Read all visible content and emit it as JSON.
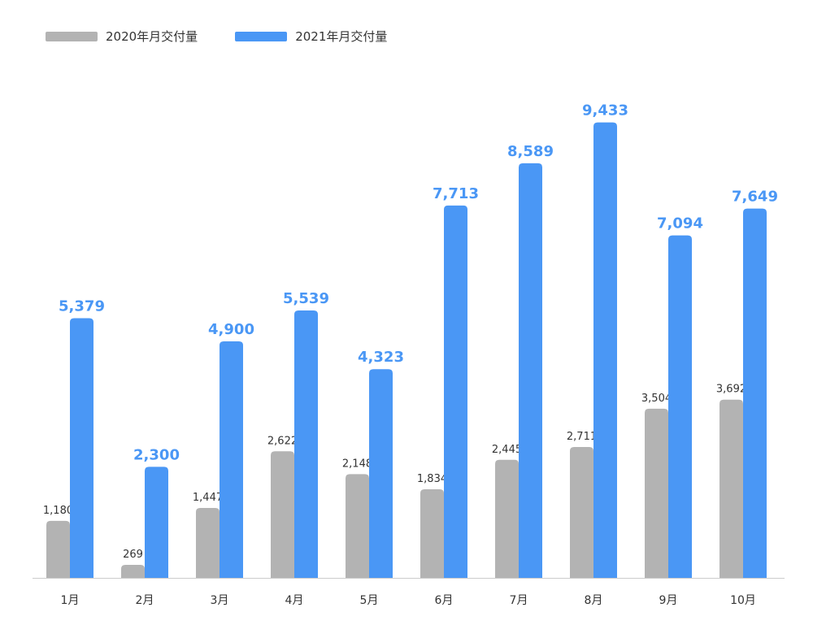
{
  "colors": {
    "series_2020": "#b3b3b3",
    "series_2021": "#4a97f5",
    "axis": "#cccccc",
    "label_2020": "#333333",
    "label_2021": "#4a97f5",
    "tick": "#333333"
  },
  "legend": [
    {
      "name": "2020年月交付量"
    },
    {
      "name": "2021年月交付量"
    }
  ],
  "chart_data": {
    "type": "bar",
    "categories": [
      "1月",
      "2月",
      "3月",
      "4月",
      "5月",
      "6月",
      "7月",
      "8月",
      "9月",
      "10月"
    ],
    "series": [
      {
        "name": "2020年月交付量",
        "values": [
          1180,
          269,
          1447,
          2622,
          2148,
          1834,
          2445,
          2711,
          3504,
          3692
        ],
        "labels": [
          "1,180",
          "269",
          "1,447",
          "2,622",
          "2,148",
          "1,834",
          "2,445",
          "2,711",
          "3,504",
          "3,692"
        ]
      },
      {
        "name": "2021年月交付量",
        "values": [
          5379,
          2300,
          4900,
          5539,
          4323,
          7713,
          8589,
          9433,
          7094,
          7649
        ],
        "labels": [
          "5,379",
          "2,300",
          "4,900",
          "5,539",
          "4,323",
          "7,713",
          "8,589",
          "9,433",
          "7,094",
          "7,649"
        ]
      }
    ],
    "ylim": [
      0,
      10000
    ],
    "grid": false,
    "legend_position": "top-left"
  }
}
